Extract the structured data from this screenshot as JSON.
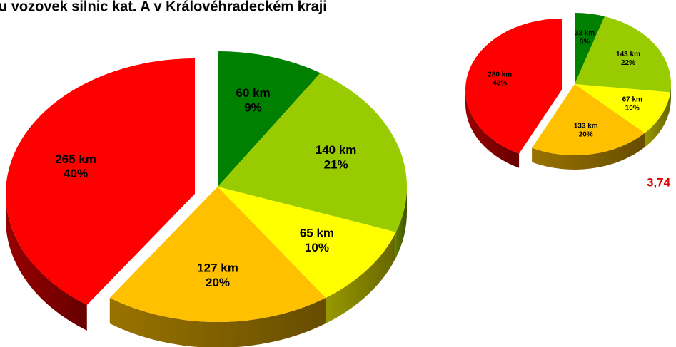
{
  "chart_data": [
    {
      "type": "pie3d",
      "title": "u vozovek silnic kat. A v Královéhradeckém kraji",
      "categories": [
        null,
        null,
        null,
        null,
        null
      ],
      "values": [
        60,
        140,
        65,
        127,
        265
      ],
      "value_labels": [
        "60 km",
        "140 km",
        "65 km",
        "127 km",
        "265 km"
      ],
      "percents": [
        9,
        21,
        10,
        20,
        40
      ],
      "percent_labels": [
        "9%",
        "21%",
        "10%",
        "20%",
        "40%"
      ],
      "colors": [
        "#008000",
        "#99cc00",
        "#ffff00",
        "#ffc000",
        "#ff0000"
      ],
      "exploded": [
        false,
        false,
        false,
        false,
        true
      ]
    },
    {
      "type": "pie3d",
      "annotation": "3,74",
      "categories": [
        null,
        null,
        null,
        null,
        null
      ],
      "values": [
        33,
        143,
        67,
        133,
        280
      ],
      "value_labels": [
        "33 km",
        "143 km",
        "67 km",
        "133 km",
        "280 km"
      ],
      "percents": [
        5,
        22,
        10,
        20,
        43
      ],
      "percent_labels": [
        "5%",
        "22%",
        "10%",
        "20%",
        "43%"
      ],
      "colors": [
        "#008000",
        "#99cc00",
        "#ffff00",
        "#ffc000",
        "#ff0000"
      ],
      "exploded": [
        false,
        false,
        false,
        false,
        true
      ]
    }
  ]
}
